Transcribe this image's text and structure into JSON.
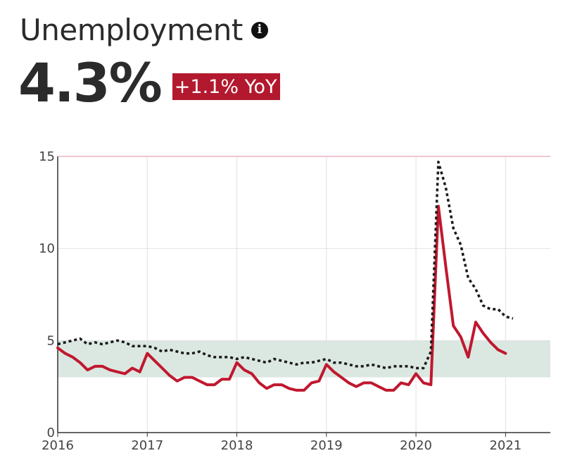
{
  "header": {
    "title": "Unemployment",
    "info_icon": "info-icon",
    "value": "4.3%",
    "yoy_badge": "+1.1% YoY"
  },
  "colors": {
    "series_line": "#c0182f",
    "national_line": "#1a1a1a",
    "band_fill": "#dbe8e1",
    "badge": "#b3192e",
    "top_rule": "#f2c6cf",
    "grid": "#e2e2e2"
  },
  "chart_data": {
    "type": "line",
    "title": "",
    "xlabel": "",
    "ylabel": "",
    "xlim": [
      2016,
      2021.5
    ],
    "ylim": [
      0,
      15
    ],
    "x_ticks": [
      "2016",
      "2017",
      "2018",
      "2019",
      "2020",
      "2021"
    ],
    "y_ticks": [
      "0",
      "5",
      "10",
      "15"
    ],
    "grid": true,
    "band": {
      "from": 3,
      "to": 5
    },
    "series": [
      {
        "style": "solid",
        "x": [
          2016.0,
          2016.083,
          2016.167,
          2016.25,
          2016.333,
          2016.417,
          2016.5,
          2016.583,
          2016.667,
          2016.75,
          2016.833,
          2016.917,
          2017.0,
          2017.083,
          2017.167,
          2017.25,
          2017.333,
          2017.417,
          2017.5,
          2017.583,
          2017.667,
          2017.75,
          2017.833,
          2017.917,
          2018.0,
          2018.083,
          2018.167,
          2018.25,
          2018.333,
          2018.417,
          2018.5,
          2018.583,
          2018.667,
          2018.75,
          2018.833,
          2018.917,
          2019.0,
          2019.083,
          2019.167,
          2019.25,
          2019.333,
          2019.417,
          2019.5,
          2019.583,
          2019.667,
          2019.75,
          2019.833,
          2019.917,
          2020.0,
          2020.083,
          2020.167,
          2020.25,
          2020.333,
          2020.417,
          2020.5,
          2020.583,
          2020.667,
          2020.75,
          2020.833,
          2020.917,
          2021.0
        ],
        "values": [
          4.6,
          4.3,
          4.1,
          3.8,
          3.4,
          3.6,
          3.6,
          3.4,
          3.3,
          3.2,
          3.5,
          3.3,
          4.3,
          3.9,
          3.5,
          3.1,
          2.8,
          3.0,
          3.0,
          2.8,
          2.6,
          2.6,
          2.9,
          2.9,
          3.8,
          3.4,
          3.2,
          2.7,
          2.4,
          2.6,
          2.6,
          2.4,
          2.3,
          2.3,
          2.7,
          2.8,
          3.7,
          3.3,
          3.0,
          2.7,
          2.5,
          2.7,
          2.7,
          2.5,
          2.3,
          2.3,
          2.7,
          2.6,
          3.2,
          2.7,
          2.6,
          12.3,
          9.0,
          5.8,
          5.2,
          4.1,
          6.0,
          5.4,
          4.9,
          4.5,
          4.3
        ]
      },
      {
        "style": "dotted",
        "x": [
          2016.0,
          2016.083,
          2016.167,
          2016.25,
          2016.333,
          2016.417,
          2016.5,
          2016.583,
          2016.667,
          2016.75,
          2016.833,
          2016.917,
          2017.0,
          2017.083,
          2017.167,
          2017.25,
          2017.333,
          2017.417,
          2017.5,
          2017.583,
          2017.667,
          2017.75,
          2017.833,
          2017.917,
          2018.0,
          2018.083,
          2018.167,
          2018.25,
          2018.333,
          2018.417,
          2018.5,
          2018.583,
          2018.667,
          2018.75,
          2018.833,
          2018.917,
          2019.0,
          2019.083,
          2019.167,
          2019.25,
          2019.333,
          2019.417,
          2019.5,
          2019.583,
          2019.667,
          2019.75,
          2019.833,
          2019.917,
          2020.0,
          2020.083,
          2020.167,
          2020.25,
          2020.333,
          2020.417,
          2020.5,
          2020.583,
          2020.667,
          2020.75,
          2020.833,
          2020.917,
          2021.0,
          2021.083
        ],
        "values": [
          4.8,
          4.9,
          5.0,
          5.1,
          4.8,
          4.9,
          4.8,
          4.9,
          5.0,
          4.9,
          4.7,
          4.7,
          4.7,
          4.6,
          4.4,
          4.5,
          4.4,
          4.3,
          4.3,
          4.4,
          4.2,
          4.1,
          4.1,
          4.1,
          4.0,
          4.1,
          4.0,
          3.9,
          3.8,
          4.0,
          3.9,
          3.8,
          3.7,
          3.8,
          3.8,
          3.9,
          4.0,
          3.8,
          3.8,
          3.7,
          3.6,
          3.6,
          3.7,
          3.6,
          3.5,
          3.6,
          3.6,
          3.6,
          3.5,
          3.5,
          4.4,
          14.7,
          13.3,
          11.1,
          10.2,
          8.4,
          7.8,
          6.9,
          6.7,
          6.7,
          6.3,
          6.2
        ]
      }
    ]
  }
}
